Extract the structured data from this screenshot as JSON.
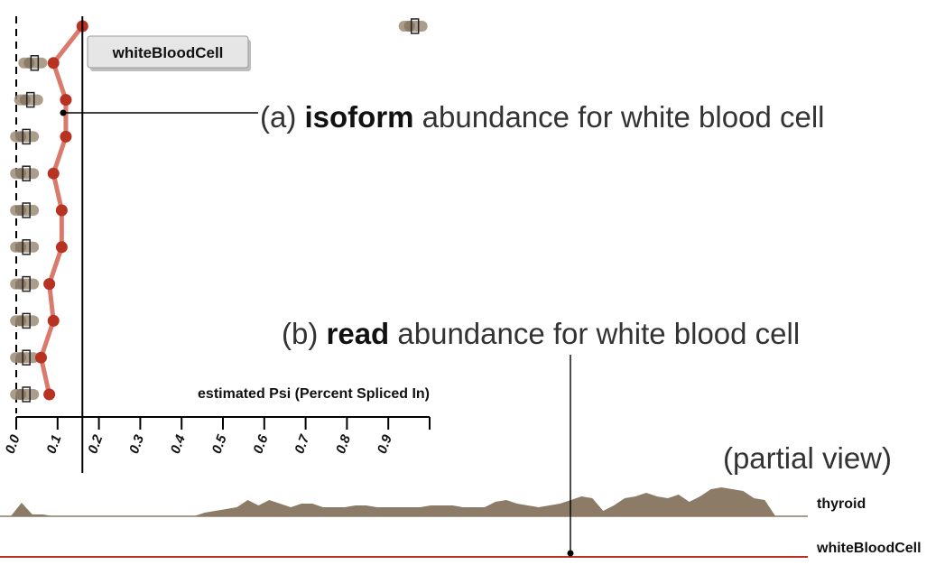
{
  "chart_data": [
    {
      "type": "scatter",
      "title": "",
      "xlabel": "estimated Psi (Percent Spliced In)",
      "xlim": [
        0.0,
        1.0
      ],
      "tick_labels": [
        "0.0",
        "0.1",
        "0.2",
        "0.3",
        "0.4",
        "0.5",
        "0.6",
        "0.7",
        "0.8",
        "0.9"
      ],
      "series": [
        {
          "name": "whiteBloodCell",
          "color": "#b83222",
          "line_color": "#d97a6c",
          "values": [
            0.16,
            0.09,
            0.12,
            0.12,
            0.09,
            0.11,
            0.11,
            0.08,
            0.09,
            0.06,
            0.08
          ]
        }
      ],
      "other_tissues_box_positions": [
        0.96,
        0.04,
        0.03,
        0.02,
        0.02,
        0.02,
        0.02,
        0.02,
        0.02,
        0.02,
        0.02
      ],
      "highlight_line_x": 0.16,
      "tooltip": "whiteBloodCell",
      "annotation": {
        "prefix": "(a) ",
        "bold": "isoform",
        "suffix": " abundance for white blood cell"
      }
    },
    {
      "type": "area",
      "tracks": [
        {
          "name": "thyroid",
          "color": "#8c7b67"
        },
        {
          "name": "whiteBloodCell",
          "color": "#b83222"
        }
      ],
      "thyroid_profile": [
        0,
        0,
        15,
        2,
        2,
        0,
        0,
        0,
        0,
        0,
        0,
        0,
        0,
        0,
        0,
        0,
        0,
        0,
        0,
        4,
        6,
        8,
        10,
        18,
        12,
        18,
        14,
        10,
        14,
        14,
        10,
        10,
        10,
        12,
        12,
        10,
        10,
        10,
        10,
        10,
        12,
        12,
        12,
        10,
        10,
        10,
        16,
        18,
        14,
        12,
        10,
        12,
        14,
        18,
        22,
        20,
        6,
        12,
        20,
        22,
        26,
        22,
        20,
        24,
        16,
        22,
        30,
        32,
        30,
        28,
        20,
        18,
        0,
        0,
        0,
        0
      ],
      "annotation": {
        "prefix": "(b) ",
        "bold": "read",
        "suffix": " abundance for white blood cell"
      },
      "note": "(partial view)"
    }
  ]
}
